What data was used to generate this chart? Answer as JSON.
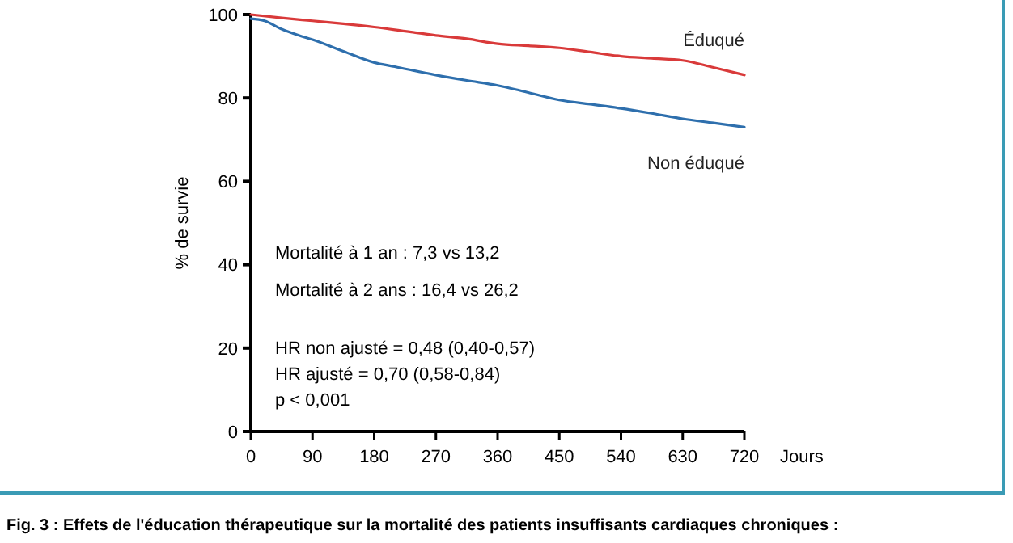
{
  "chart_data": {
    "type": "line",
    "ylabel": "% de survie",
    "xlabel": "Jours",
    "xlim": [
      0,
      720
    ],
    "xticks": [
      0,
      90,
      180,
      270,
      360,
      450,
      540,
      630,
      720
    ],
    "ylim": [
      0,
      100
    ],
    "yticks": [
      0,
      20,
      40,
      60,
      80,
      100
    ],
    "grid": false,
    "marker": "none",
    "series": [
      {
        "name": "Éduqué",
        "color": "#d93a3a",
        "x": [
          0,
          45,
          90,
          135,
          180,
          225,
          270,
          315,
          360,
          405,
          450,
          495,
          540,
          585,
          630,
          675,
          720
        ],
        "values": [
          100,
          99.2,
          98.5,
          97.8,
          97,
          96,
          95,
          94.2,
          93,
          92.5,
          92,
          91,
          90,
          89.5,
          89,
          87.3,
          85.5
        ]
      },
      {
        "name": "Non éduqué",
        "color": "#2e6fad",
        "x": [
          0,
          20,
          45,
          70,
          90,
          135,
          180,
          210,
          270,
          315,
          360,
          400,
          450,
          495,
          540,
          585,
          630,
          675,
          720
        ],
        "values": [
          99,
          98.5,
          96.5,
          95,
          94,
          91.2,
          88.5,
          87.5,
          85.5,
          84.2,
          83,
          81.5,
          79.5,
          78.5,
          77.5,
          76.3,
          75,
          74,
          73
        ]
      }
    ],
    "annotations": [
      "Mortalité à 1 an : 7,3 vs 13,2",
      "Mortalité à 2 ans : 16,4 vs 26,2",
      "HR non ajusté = 0,48 (0,40-0,57)",
      "HR ajusté = 0,70 (0,58-0,84)",
      "p < 0,001",
      "Fig. 3 : Effets de l'éducation thérapeutique sur la mortalité des patients insuffisants cardiaques chroniques :"
    ]
  }
}
